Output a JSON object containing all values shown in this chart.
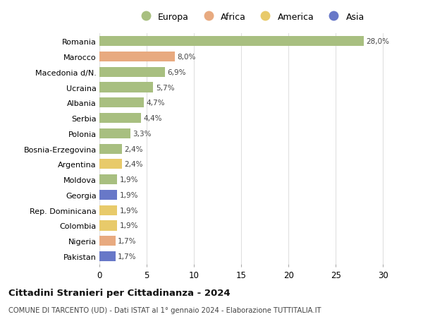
{
  "categories": [
    "Romania",
    "Marocco",
    "Macedonia d/N.",
    "Ucraina",
    "Albania",
    "Serbia",
    "Polonia",
    "Bosnia-Erzegovina",
    "Argentina",
    "Moldova",
    "Georgia",
    "Rep. Dominicana",
    "Colombia",
    "Nigeria",
    "Pakistan"
  ],
  "values": [
    28.0,
    8.0,
    6.9,
    5.7,
    4.7,
    4.4,
    3.3,
    2.4,
    2.4,
    1.9,
    1.9,
    1.9,
    1.9,
    1.7,
    1.7
  ],
  "continents": [
    "Europa",
    "Africa",
    "Europa",
    "Europa",
    "Europa",
    "Europa",
    "Europa",
    "Europa",
    "America",
    "Europa",
    "Asia",
    "America",
    "America",
    "Africa",
    "Asia"
  ],
  "colors": {
    "Europa": "#a8bf80",
    "Africa": "#e8aa80",
    "America": "#e8ca6a",
    "Asia": "#6878c8"
  },
  "legend_order": [
    "Europa",
    "Africa",
    "America",
    "Asia"
  ],
  "title": "Cittadini Stranieri per Cittadinanza - 2024",
  "subtitle": "COMUNE DI TARCENTO (UD) - Dati ISTAT al 1° gennaio 2024 - Elaborazione TUTTITALIA.IT",
  "xlim": [
    0,
    32
  ],
  "xticks": [
    0,
    5,
    10,
    15,
    20,
    25,
    30
  ],
  "background_color": "#ffffff",
  "grid_color": "#e0e0e0",
  "bar_height": 0.65
}
